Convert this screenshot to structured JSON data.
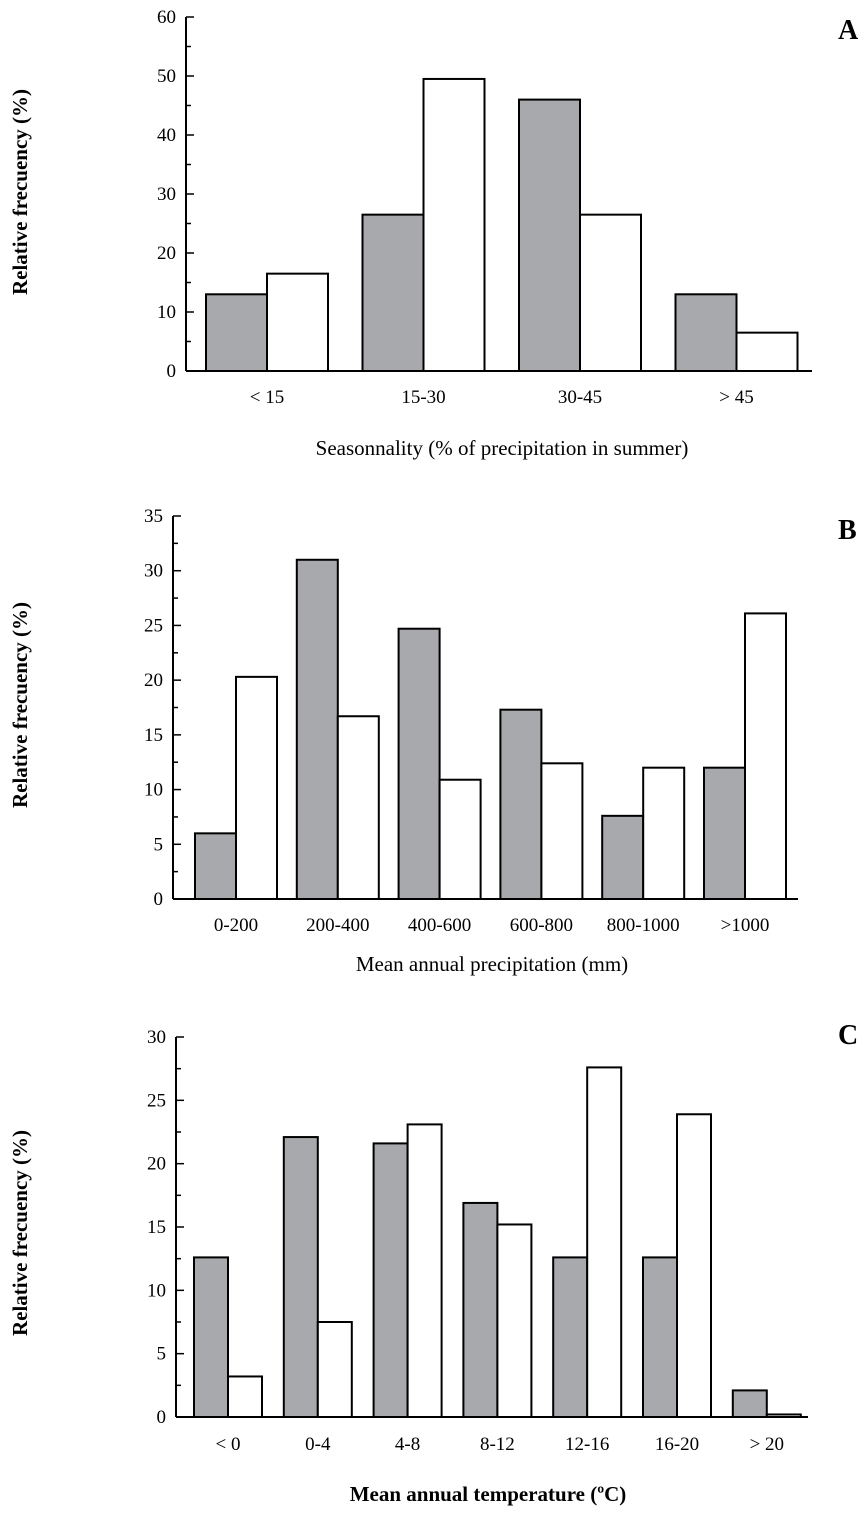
{
  "chart_data": [
    {
      "type": "bar",
      "panel_label": "A",
      "categories": [
        "< 15",
        "15-30",
        "30-45",
        "> 45"
      ],
      "series": [
        {
          "color": "#a7a9ac",
          "values": [
            13,
            26.5,
            46,
            13
          ]
        },
        {
          "color": "#ffffff",
          "values": [
            16.5,
            49.5,
            26.5,
            6.5
          ]
        }
      ],
      "xlabel": "Seasonnality (% of precipitation in summer)",
      "ylabel": "Relative frecuency (%)",
      "ylim": [
        0,
        60
      ],
      "yticks": [
        "0",
        "10",
        "20",
        "30",
        "40",
        "50",
        "60"
      ],
      "grid": false
    },
    {
      "type": "bar",
      "panel_label": "B",
      "categories": [
        "0-200",
        "200-400",
        "400-600",
        "600-800",
        "800-1000",
        ">1000"
      ],
      "series": [
        {
          "color": "#a7a9ac",
          "values": [
            6,
            31,
            24.7,
            17.3,
            7.6,
            12
          ]
        },
        {
          "color": "#ffffff",
          "values": [
            20.3,
            16.7,
            10.9,
            12.4,
            12,
            26.1
          ]
        }
      ],
      "xlabel": "Mean annual precipitation (mm)",
      "ylabel": "Relative frecuency (%)",
      "ylim": [
        0,
        35
      ],
      "yticks": [
        "0",
        "5",
        "10",
        "15",
        "20",
        "25",
        "30",
        "35"
      ],
      "grid": false
    },
    {
      "type": "bar",
      "panel_label": "C",
      "categories": [
        "< 0",
        "0-4",
        "4-8",
        "8-12",
        "12-16",
        "16-20",
        "> 20"
      ],
      "series": [
        {
          "color": "#a7a9ac",
          "values": [
            12.6,
            22.1,
            21.6,
            16.9,
            12.6,
            12.6,
            2.1
          ]
        },
        {
          "color": "#ffffff",
          "values": [
            3.2,
            7.5,
            23.1,
            15.2,
            27.6,
            23.9,
            0.2
          ]
        }
      ],
      "xlabel": "Mean annual temperature (ºC)",
      "ylabel": "Relative frecuency (%)",
      "ylim": [
        0,
        30
      ],
      "yticks": [
        "0",
        "5",
        "10",
        "15",
        "20",
        "25",
        "30"
      ],
      "grid": false
    }
  ]
}
